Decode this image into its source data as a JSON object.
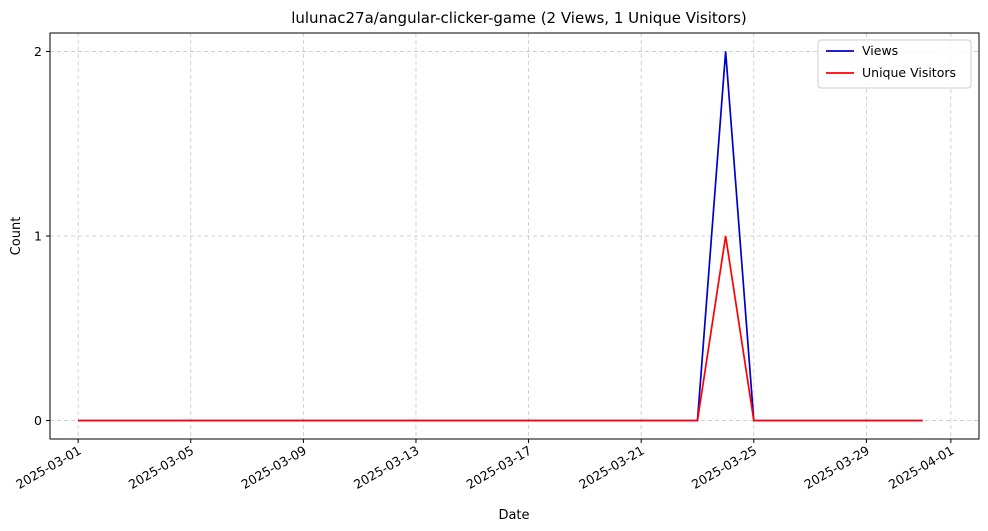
{
  "chart_data": {
    "type": "line",
    "title": "lulunac27a/angular-clicker-game (2 Views, 1 Unique Visitors)",
    "xlabel": "Date",
    "ylabel": "Count",
    "x": [
      "2025-03-01",
      "2025-03-02",
      "2025-03-03",
      "2025-03-04",
      "2025-03-05",
      "2025-03-06",
      "2025-03-07",
      "2025-03-08",
      "2025-03-09",
      "2025-03-10",
      "2025-03-11",
      "2025-03-12",
      "2025-03-13",
      "2025-03-14",
      "2025-03-15",
      "2025-03-16",
      "2025-03-17",
      "2025-03-18",
      "2025-03-19",
      "2025-03-20",
      "2025-03-21",
      "2025-03-22",
      "2025-03-23",
      "2025-03-24",
      "2025-03-25",
      "2025-03-26",
      "2025-03-27",
      "2025-03-28",
      "2025-03-29",
      "2025-03-30",
      "2025-03-31"
    ],
    "series": [
      {
        "name": "Views",
        "color": "#0000cc",
        "values": [
          0,
          0,
          0,
          0,
          0,
          0,
          0,
          0,
          0,
          0,
          0,
          0,
          0,
          0,
          0,
          0,
          0,
          0,
          0,
          0,
          0,
          0,
          0,
          2,
          0,
          0,
          0,
          0,
          0,
          0,
          0
        ]
      },
      {
        "name": "Unique Visitors",
        "color": "#ff0000",
        "values": [
          0,
          0,
          0,
          0,
          0,
          0,
          0,
          0,
          0,
          0,
          0,
          0,
          0,
          0,
          0,
          0,
          0,
          0,
          0,
          0,
          0,
          0,
          0,
          1,
          0,
          0,
          0,
          0,
          0,
          0,
          0
        ]
      }
    ],
    "xticks": [
      "2025-03-01",
      "2025-03-05",
      "2025-03-09",
      "2025-03-13",
      "2025-03-17",
      "2025-03-21",
      "2025-03-25",
      "2025-03-29",
      "2025-04-01"
    ],
    "yticks": [
      "0",
      "1",
      "2"
    ],
    "xlim": [
      "2025-02-28",
      "2025-04-02"
    ],
    "ylim": [
      -0.1,
      2.1
    ],
    "grid": true,
    "legend": "top-right"
  }
}
